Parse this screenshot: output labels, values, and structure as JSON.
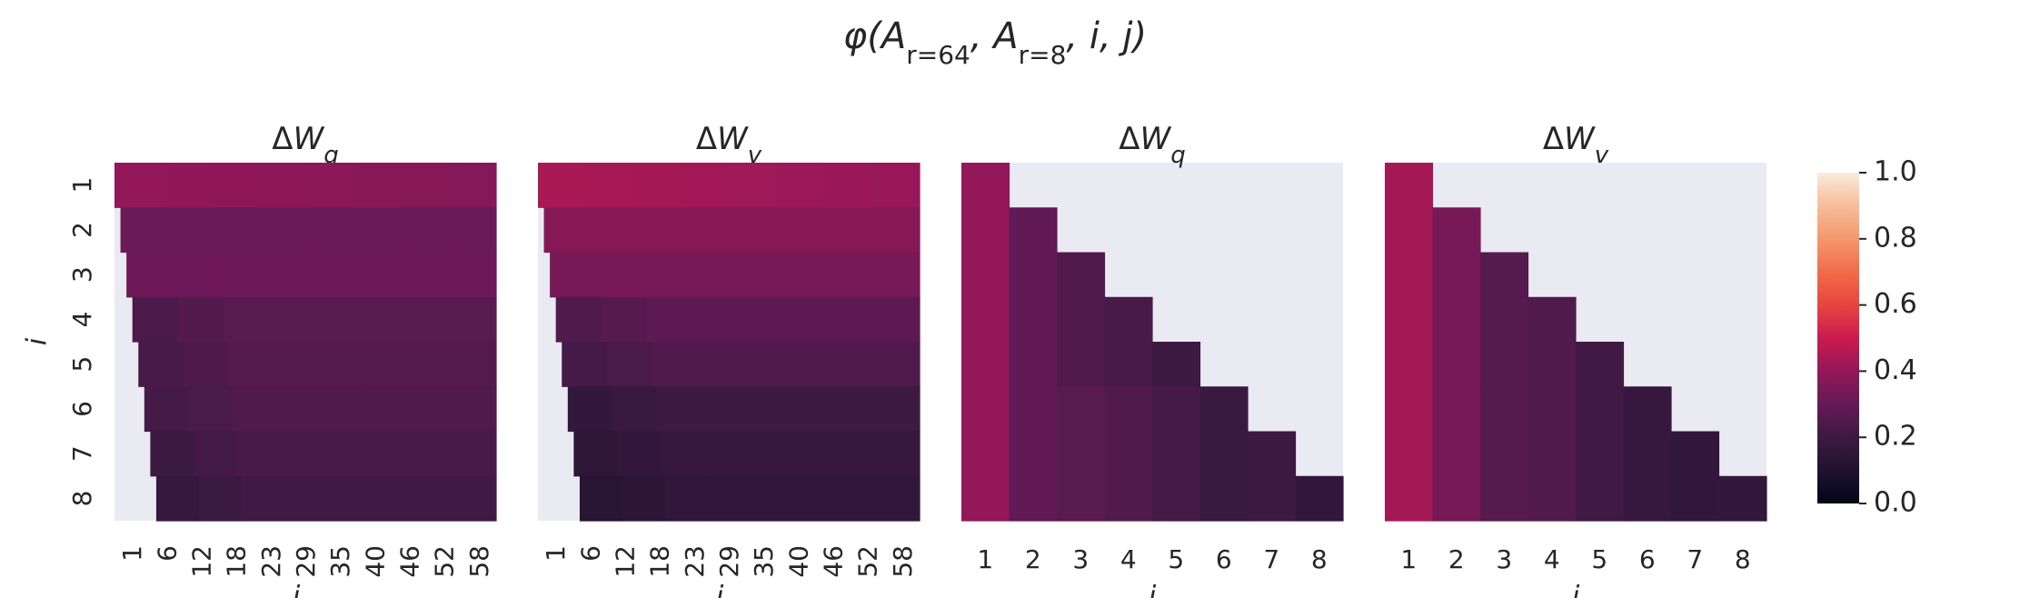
{
  "chart_data": {
    "type": "heatmap",
    "title": "φ(A_{r=64}, A_{r=8}, i, j)",
    "colorbar": {
      "range": [
        0,
        1
      ],
      "ticks": [
        "0.0",
        "0.2",
        "0.4",
        "0.6",
        "0.8",
        "1.0"
      ],
      "colormap": "rocket",
      "placement": "right"
    },
    "missing_color": "#eaeaf2",
    "panels": [
      {
        "title": "ΔW_q",
        "xlabel": "j",
        "ylabel": "i",
        "rows": [
          "1",
          "2",
          "3",
          "4",
          "5",
          "6",
          "7",
          "8"
        ],
        "x_ticks": [
          "1",
          "6",
          "12",
          "18",
          "23",
          "29",
          "35",
          "40",
          "46",
          "52",
          "58"
        ],
        "n_cols": 64,
        "row_values": [
          0.4,
          0.31,
          0.32,
          0.27,
          0.26,
          0.25,
          0.23,
          0.21
        ],
        "row_start_col": [
          1,
          2,
          3,
          4,
          5,
          6,
          7,
          8
        ]
      },
      {
        "title": "ΔW_v",
        "xlabel": "j",
        "ylabel": "",
        "rows": [
          "1",
          "2",
          "3",
          "4",
          "5",
          "6",
          "7",
          "8"
        ],
        "x_ticks": [
          "1",
          "6",
          "12",
          "18",
          "23",
          "29",
          "35",
          "40",
          "46",
          "52",
          "58"
        ],
        "n_cols": 64,
        "row_values": [
          0.44,
          0.37,
          0.34,
          0.28,
          0.25,
          0.2,
          0.18,
          0.16
        ],
        "row_start_col": [
          1,
          2,
          3,
          4,
          5,
          6,
          7,
          8
        ]
      },
      {
        "title": "ΔW_q",
        "xlabel": "j",
        "ylabel": "",
        "rows": [
          "1",
          "2",
          "3",
          "4",
          "5",
          "6",
          "7",
          "8"
        ],
        "x_ticks": [
          "1",
          "2",
          "3",
          "4",
          "5",
          "6",
          "7",
          "8"
        ],
        "n_cols": 8,
        "cells": [
          [
            0.4,
            null,
            null,
            null,
            null,
            null,
            null,
            null
          ],
          [
            0.4,
            0.29,
            null,
            null,
            null,
            null,
            null,
            null
          ],
          [
            0.4,
            0.29,
            0.25,
            null,
            null,
            null,
            null,
            null
          ],
          [
            0.4,
            0.29,
            0.25,
            0.23,
            null,
            null,
            null,
            null
          ],
          [
            0.4,
            0.29,
            0.25,
            0.23,
            0.2,
            null,
            null,
            null
          ],
          [
            0.4,
            0.29,
            0.27,
            0.25,
            0.22,
            0.19,
            null,
            null
          ],
          [
            0.4,
            0.29,
            0.27,
            0.25,
            0.22,
            0.19,
            0.2,
            null
          ],
          [
            0.4,
            0.29,
            0.27,
            0.25,
            0.22,
            0.19,
            0.2,
            0.16
          ]
        ]
      },
      {
        "title": "ΔW_v",
        "xlabel": "j",
        "ylabel": "",
        "rows": [
          "1",
          "2",
          "3",
          "4",
          "5",
          "6",
          "7",
          "8"
        ],
        "x_ticks": [
          "1",
          "2",
          "3",
          "4",
          "5",
          "6",
          "7",
          "8"
        ],
        "n_cols": 8,
        "cells": [
          [
            0.43,
            null,
            null,
            null,
            null,
            null,
            null,
            null
          ],
          [
            0.43,
            0.34,
            null,
            null,
            null,
            null,
            null,
            null
          ],
          [
            0.43,
            0.34,
            0.26,
            null,
            null,
            null,
            null,
            null
          ],
          [
            0.43,
            0.34,
            0.26,
            0.25,
            null,
            null,
            null,
            null
          ],
          [
            0.43,
            0.34,
            0.26,
            0.25,
            0.21,
            null,
            null,
            null
          ],
          [
            0.43,
            0.34,
            0.26,
            0.25,
            0.21,
            0.18,
            null,
            null
          ],
          [
            0.43,
            0.34,
            0.26,
            0.25,
            0.21,
            0.18,
            0.16,
            null
          ],
          [
            0.43,
            0.34,
            0.26,
            0.25,
            0.21,
            0.18,
            0.16,
            0.17
          ]
        ]
      }
    ]
  }
}
